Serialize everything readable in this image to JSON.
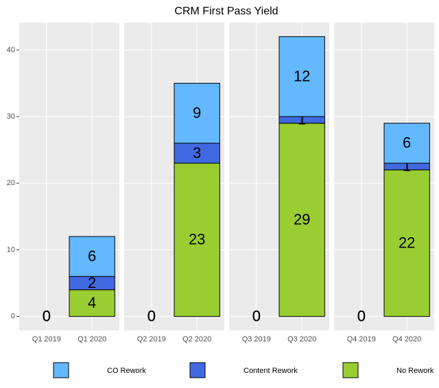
{
  "chart_data": {
    "type": "stacked-bar",
    "title": "CRM First Pass Yield",
    "facets": [
      [
        "Q1 2019",
        "Q1 2020"
      ],
      [
        "Q2 2019",
        "Q2 2020"
      ],
      [
        "Q3 2019",
        "Q3 2020"
      ],
      [
        "Q4 2019",
        "Q4 2020"
      ]
    ],
    "series": [
      {
        "name": "CO Rework",
        "color": "#63b8ff",
        "values": [
          [
            0,
            6
          ],
          [
            0,
            9
          ],
          [
            0,
            12
          ],
          [
            0,
            6
          ]
        ]
      },
      {
        "name": "Content Rework",
        "color": "#4169e1",
        "values": [
          [
            0,
            2
          ],
          [
            0,
            3
          ],
          [
            0,
            1
          ],
          [
            0,
            1
          ]
        ]
      },
      {
        "name": "No Rework",
        "color": "#9acd32",
        "values": [
          [
            0,
            4
          ],
          [
            0,
            23
          ],
          [
            0,
            29
          ],
          [
            0,
            22
          ]
        ]
      }
    ],
    "ylim": [
      -2.1,
      44.1
    ],
    "yticks": [
      0,
      10,
      20,
      30,
      40
    ],
    "grid": true,
    "legend": "bottom"
  }
}
